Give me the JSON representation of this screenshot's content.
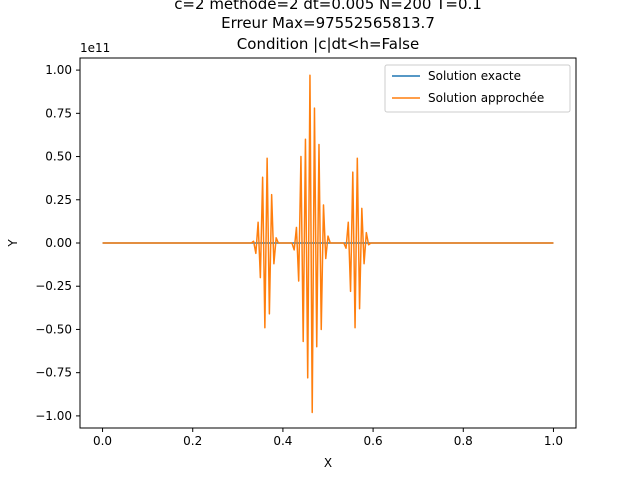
{
  "chart_data": {
    "type": "line",
    "title_lines": [
      "c=2 methode=2 dt=0.005 N=200 T=0.1",
      "Erreur Max=97552565813.7",
      "Condition |c|dt<h=False"
    ],
    "xlabel": "X",
    "ylabel": "Y",
    "y_offset_label": "1e11",
    "y_scale": 100000000000,
    "xlim": [
      -0.05,
      1.05
    ],
    "ylim": [
      -1.07,
      1.07
    ],
    "x_ticks": [
      0.0,
      0.2,
      0.4,
      0.6,
      0.8,
      1.0
    ],
    "x_tick_labels": [
      "0.0",
      "0.2",
      "0.4",
      "0.6",
      "0.8",
      "1.0"
    ],
    "y_ticks": [
      -1.0,
      -0.75,
      -0.5,
      -0.25,
      0.0,
      0.25,
      0.5,
      0.75,
      1.0
    ],
    "y_tick_labels": [
      "−1.00",
      "−0.75",
      "−0.50",
      "−0.25",
      "0.00",
      "0.25",
      "0.50",
      "0.75",
      "1.00"
    ],
    "legend_position": "top-right",
    "series": [
      {
        "name": "Solution exacte",
        "color": "#1f77b4",
        "points": [
          [
            0.0,
            0.0
          ],
          [
            1.0,
            0.0
          ]
        ]
      },
      {
        "name": "Solution approchée",
        "color": "#ff7f0e",
        "points": [
          [
            0.0,
            0.0
          ],
          [
            0.33,
            0.0
          ],
          [
            0.335,
            0.01
          ],
          [
            0.34,
            -0.06
          ],
          [
            0.345,
            0.12
          ],
          [
            0.35,
            -0.2
          ],
          [
            0.355,
            0.38
          ],
          [
            0.36,
            -0.49
          ],
          [
            0.365,
            0.49
          ],
          [
            0.37,
            -0.41
          ],
          [
            0.375,
            0.28
          ],
          [
            0.38,
            -0.12
          ],
          [
            0.385,
            0.03
          ],
          [
            0.39,
            0.0
          ],
          [
            0.42,
            0.0
          ],
          [
            0.425,
            -0.04
          ],
          [
            0.43,
            0.09
          ],
          [
            0.435,
            -0.22
          ],
          [
            0.44,
            0.5
          ],
          [
            0.445,
            -0.57
          ],
          [
            0.45,
            0.6
          ],
          [
            0.455,
            -0.78
          ],
          [
            0.46,
            0.97
          ],
          [
            0.465,
            -0.98
          ],
          [
            0.47,
            0.78
          ],
          [
            0.475,
            -0.6
          ],
          [
            0.48,
            0.57
          ],
          [
            0.485,
            -0.5
          ],
          [
            0.49,
            0.22
          ],
          [
            0.495,
            -0.09
          ],
          [
            0.5,
            0.04
          ],
          [
            0.505,
            0.0
          ],
          [
            0.535,
            0.0
          ],
          [
            0.54,
            -0.03
          ],
          [
            0.545,
            0.12
          ],
          [
            0.55,
            -0.28
          ],
          [
            0.555,
            0.41
          ],
          [
            0.56,
            -0.49
          ],
          [
            0.565,
            0.49
          ],
          [
            0.57,
            -0.38
          ],
          [
            0.575,
            0.2
          ],
          [
            0.58,
            -0.12
          ],
          [
            0.585,
            0.06
          ],
          [
            0.59,
            -0.01
          ],
          [
            0.595,
            0.0
          ],
          [
            1.0,
            0.0
          ]
        ]
      }
    ]
  }
}
